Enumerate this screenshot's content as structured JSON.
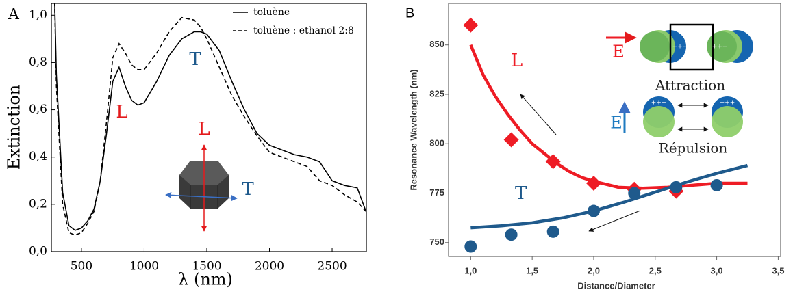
{
  "chart_data": [
    {
      "type": "line",
      "label": "A",
      "xlabel": "λ (nm)",
      "ylabel": "Extinction",
      "xlim": [
        260,
        2773
      ],
      "ylim": [
        0,
        1.05
      ],
      "xticks": [
        500,
        1000,
        1500,
        2000,
        2500
      ],
      "yticks": [
        {
          "value": 0,
          "label": "0,0"
        },
        {
          "value": 0.2,
          "label": "0,2"
        },
        {
          "value": 0.4,
          "label": "0,4"
        },
        {
          "value": 0.6,
          "label": "0,6"
        },
        {
          "value": 0.8,
          "label": "0,8"
        },
        {
          "value": 1.0,
          "label": "1,0"
        }
      ],
      "x": [
        280,
        300,
        350,
        400,
        450,
        500,
        550,
        600,
        650,
        700,
        750,
        800,
        850,
        900,
        950,
        1000,
        1100,
        1200,
        1300,
        1400,
        1450,
        1500,
        1600,
        1700,
        1800,
        1900,
        2000,
        2100,
        2200,
        2300,
        2400,
        2500,
        2600,
        2700,
        2770
      ],
      "series": [
        {
          "name": "toluène",
          "color": "#000000",
          "dash": false,
          "values": [
            1.2,
            0.75,
            0.25,
            0.11,
            0.09,
            0.1,
            0.13,
            0.18,
            0.3,
            0.5,
            0.72,
            0.78,
            0.7,
            0.64,
            0.62,
            0.63,
            0.72,
            0.83,
            0.9,
            0.93,
            0.93,
            0.92,
            0.85,
            0.72,
            0.6,
            0.5,
            0.45,
            0.43,
            0.41,
            0.4,
            0.38,
            0.3,
            0.28,
            0.27,
            0.17
          ]
        },
        {
          "name": "toluène : ethanol 2:8",
          "color": "#000000",
          "dash": true,
          "values": [
            1.2,
            0.7,
            0.2,
            0.08,
            0.07,
            0.08,
            0.12,
            0.17,
            0.3,
            0.55,
            0.82,
            0.88,
            0.84,
            0.79,
            0.77,
            0.77,
            0.84,
            0.93,
            0.99,
            0.98,
            0.95,
            0.9,
            0.78,
            0.66,
            0.57,
            0.49,
            0.42,
            0.4,
            0.38,
            0.36,
            0.3,
            0.28,
            0.24,
            0.21,
            0.17
          ]
        }
      ],
      "annotations": [
        {
          "text": "L",
          "color": "#e41a1c"
        },
        {
          "text": "T",
          "color": "#1f5a8c"
        },
        {
          "text": "L",
          "color": "#e41a1c"
        },
        {
          "text": "T",
          "color": "#1f5a8c"
        }
      ]
    },
    {
      "type": "scatter",
      "label": "B",
      "xlabel": "Distance/Diameter",
      "ylabel": "Resonance Wavelength (nm)",
      "xlim": [
        0.82,
        3.52
      ],
      "ylim": [
        743,
        871
      ],
      "xticks": [
        {
          "value": 1.0,
          "label": "1,0"
        },
        {
          "value": 1.5,
          "label": "1,5"
        },
        {
          "value": 2.0,
          "label": "2,0"
        },
        {
          "value": 2.5,
          "label": "2,5"
        },
        {
          "value": 3.0,
          "label": "3,0"
        },
        {
          "value": 3.5,
          "label": "3,5"
        }
      ],
      "yticks": [
        750,
        775,
        800,
        825,
        850
      ],
      "series": [
        {
          "name": "L",
          "color": "#ee1c25",
          "marker": "diamond",
          "x": [
            1.0,
            1.33,
            1.67,
            2.0,
            2.33,
            2.67
          ],
          "values": [
            860,
            802,
            791,
            780,
            777,
            776
          ]
        },
        {
          "name": "T",
          "color": "#1f5a8c",
          "marker": "circle",
          "x": [
            1.0,
            1.33,
            1.67,
            2.0,
            2.33,
            2.67,
            3.0
          ],
          "values": [
            748,
            754,
            755.5,
            766,
            775,
            778,
            779
          ]
        },
        {
          "color": "#ee1c25",
          "fit": true,
          "x": [
            1.0,
            1.1,
            1.2,
            1.3,
            1.4,
            1.5,
            1.6,
            1.7,
            1.8,
            1.9,
            2.0,
            2.2,
            2.4,
            2.6,
            2.8,
            3.0,
            3.25
          ],
          "values": [
            850,
            835,
            824,
            815,
            807,
            800,
            795,
            790,
            786,
            783,
            781,
            778,
            777.5,
            778,
            779,
            780,
            780
          ]
        },
        {
          "color": "#1f5a8c",
          "fit": true,
          "x": [
            1.0,
            1.25,
            1.5,
            1.75,
            2.0,
            2.25,
            2.5,
            2.75,
            3.0,
            3.25
          ],
          "values": [
            757.5,
            758.5,
            760,
            762.5,
            766,
            770.5,
            775.5,
            780.5,
            785,
            789
          ]
        }
      ],
      "annotations": [
        {
          "text": "E",
          "color": "#ee1c25"
        },
        {
          "text": "Attraction",
          "color": "#222222"
        },
        {
          "text": "E",
          "color": "#1f7bc0"
        },
        {
          "text": "Répulsion",
          "color": "#222222"
        },
        {
          "text": "+++",
          "color": "#ffffff"
        },
        {
          "text": "+++",
          "color": "#ffffff"
        },
        {
          "text": "+++",
          "color": "#ffffff"
        },
        {
          "text": "+++",
          "color": "#ffffff"
        }
      ]
    }
  ]
}
